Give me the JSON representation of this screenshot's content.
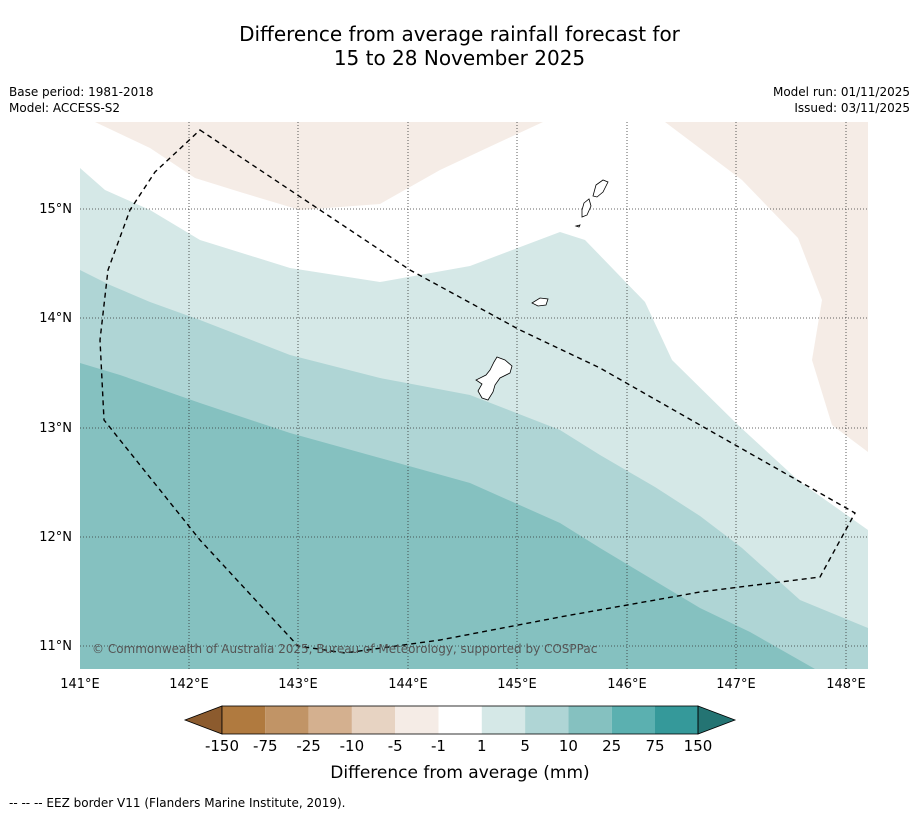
{
  "title": {
    "line1": "Difference from average rainfall forecast for",
    "line2": "15 to 28 November 2025"
  },
  "meta_left": {
    "base_period": "Base period: 1981-2018",
    "model": "Model: ACCESS-S2"
  },
  "meta_right": {
    "model_run": "Model run: 01/11/2025",
    "issued": "Issued: 03/11/2025"
  },
  "map": {
    "lon_range": [
      141,
      148.2
    ],
    "lat_range": [
      10.8,
      15.8
    ],
    "lat_ticks": [
      "15°N",
      "14°N",
      "13°N",
      "12°N",
      "11°N"
    ],
    "lon_ticks": [
      "141°E",
      "142°E",
      "143°E",
      "144°E",
      "145°E",
      "146°E",
      "147°E",
      "148°E"
    ],
    "copyright": "© Commonwealth of Australia 2025, Bureau of Meteorology, supported by COSPPac"
  },
  "legend": {
    "labels": [
      "-150",
      "-75",
      "-25",
      "-10",
      "-5",
      "-1",
      "1",
      "5",
      "10",
      "25",
      "75",
      "150"
    ],
    "colors": [
      "#8c5b2e",
      "#b07a3f",
      "#c19466",
      "#d4b08f",
      "#e7d3c2",
      "#f5ece6",
      "#ffffff",
      "#d5e8e7",
      "#afd5d5",
      "#85c1c0",
      "#5bb0b0",
      "#35999a",
      "#247473"
    ],
    "axis_label": "Difference from average (mm)"
  },
  "footnote": "--  --  -- EEZ border V11 (Flanders Marine Institute, 2019)."
}
